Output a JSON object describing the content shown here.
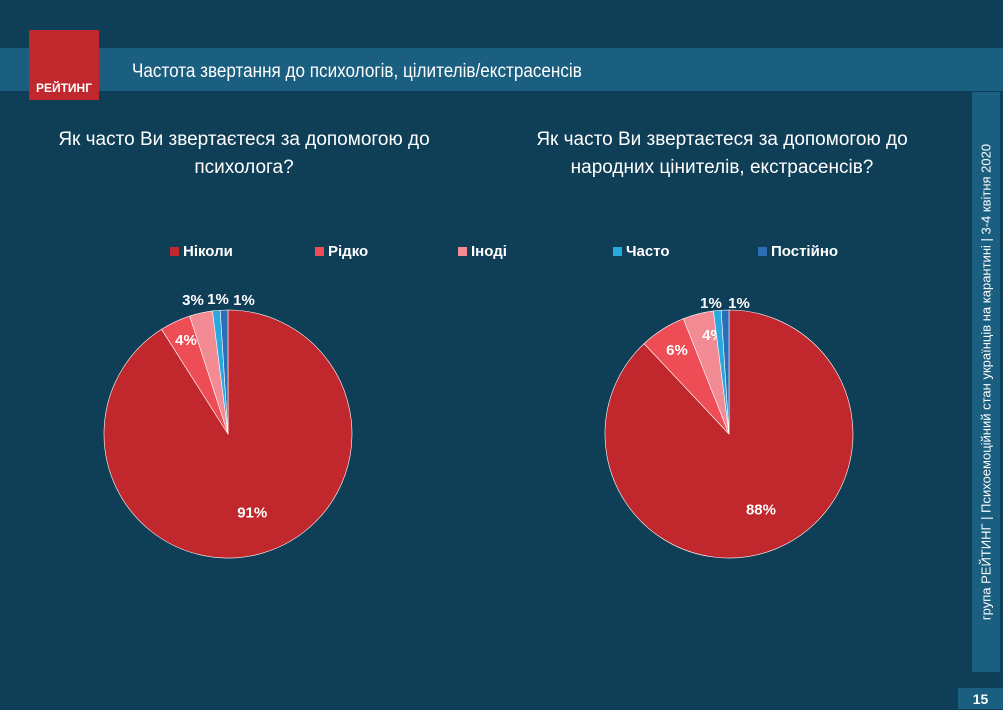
{
  "header": {
    "logo": "РЕЙТИНГ",
    "title": "Частота звертання до психологів, цілителів/екстрасенсів"
  },
  "sidebar": {
    "text": "група РЕЙТИНГ  |  Психоемоційний стан українців на карантині  |  3-4 квітня 2020"
  },
  "page_number": "15",
  "chart_data": [
    {
      "type": "pie",
      "title": "Як часто Ви звертаєтеся за допомогою до психолога?",
      "categories": [
        "Ніколи",
        "Рідко",
        "Іноді",
        "Часто",
        "Постійно"
      ],
      "values": [
        91,
        4,
        3,
        1,
        1
      ],
      "labels": [
        "91%",
        "4%",
        "3%",
        "1%",
        "1%"
      ],
      "colors": [
        "#c0282d",
        "#ef4d55",
        "#f28b93",
        "#29a8e0",
        "#2d6db5"
      ],
      "legend": "top"
    },
    {
      "type": "pie",
      "title": "Як часто Ви звертаєтеся за допомогою до народних цінителів, екстрасенсів?",
      "categories": [
        "Ніколи",
        "Рідко",
        "Іноді",
        "Часто",
        "Постійно"
      ],
      "values": [
        88,
        6,
        4,
        1,
        1
      ],
      "labels": [
        "88%",
        "6%",
        "4%",
        "1%",
        "1%"
      ],
      "colors": [
        "#c0282d",
        "#ef4d55",
        "#f28b93",
        "#29a8e0",
        "#2d6db5"
      ],
      "legend": "top"
    }
  ]
}
